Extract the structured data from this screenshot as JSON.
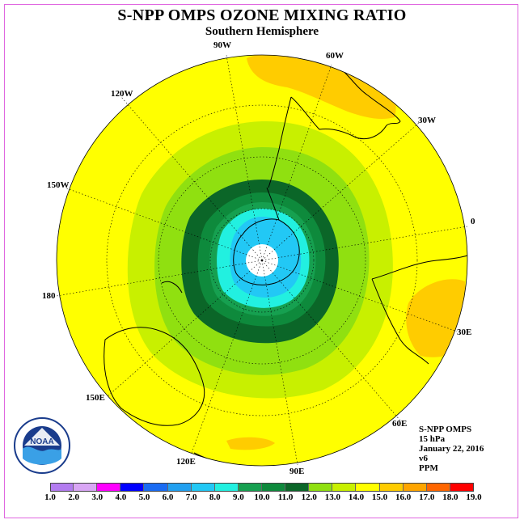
{
  "title": "S-NPP OMPS OZONE MIXING RATIO",
  "subtitle": "Southern Hemisphere",
  "longitude_labels": [
    "90W",
    "60W",
    "30W",
    "0",
    "30E",
    "60E",
    "90E",
    "120E",
    "150E",
    "180",
    "150W",
    "120W"
  ],
  "info": {
    "satellite": "S-NPP OMPS",
    "level": "15 hPa",
    "date": "January 22, 2016",
    "version": "v6",
    "units": "PPM"
  },
  "logo_text": "NOAA",
  "colorbar": {
    "labels": [
      "1.0",
      "2.0",
      "3.0",
      "4.0",
      "5.0",
      "6.0",
      "7.0",
      "8.0",
      "9.0",
      "10.0",
      "11.0",
      "12.0",
      "13.0",
      "14.0",
      "15.0",
      "16.0",
      "17.0",
      "18.0",
      "19.0"
    ],
    "colors": [
      "#b37cf0",
      "#d9a6f5",
      "#ff00ff",
      "#0000ff",
      "#1a6bf2",
      "#22a0f0",
      "#22c8f5",
      "#22f0e0",
      "#16a050",
      "#0e8a3c",
      "#0b6628",
      "#90e010",
      "#c8f000",
      "#ffff00",
      "#ffcc00",
      "#ffa500",
      "#ff6600",
      "#ff0000",
      "#8b5a3c"
    ]
  },
  "map": {
    "ocean_fill": "#ffff00",
    "south_pole_fill": "#ffffff"
  }
}
